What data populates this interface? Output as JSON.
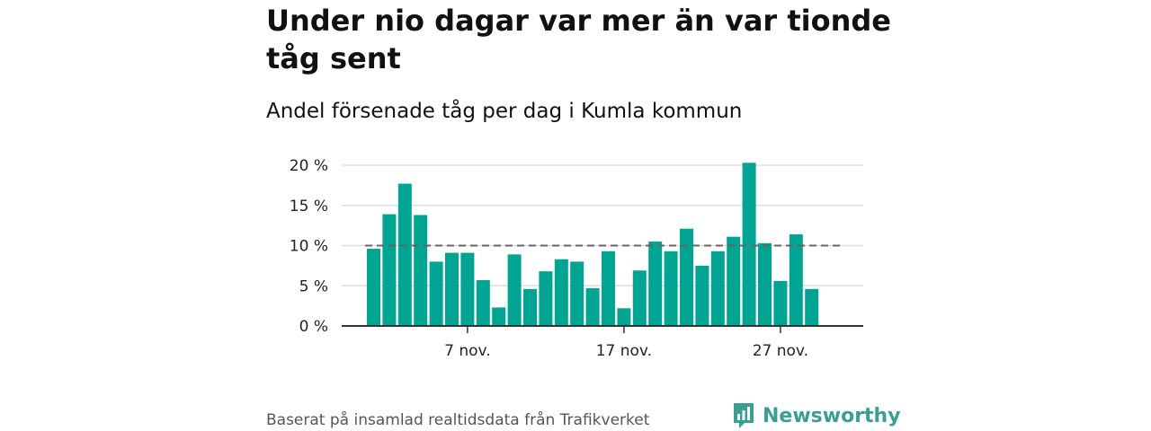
{
  "title": "Under nio dagar var mer än var tionde tåg sent",
  "subtitle": "Andel försenade tåg per dag i Kumla kommun",
  "footer": "Baserat på insamlad realtidsdata från Trafikverket",
  "logo_text": "Newsworthy",
  "colors": {
    "bar": "#00a493",
    "reference": "#666666",
    "grid": "#dddddd",
    "axis": "#333333",
    "brand": "#3a9e91"
  },
  "chart_data": {
    "type": "bar",
    "categories": [
      "1 nov.",
      "2 nov.",
      "3 nov.",
      "4 nov.",
      "5 nov.",
      "6 nov.",
      "7 nov.",
      "8 nov.",
      "9 nov.",
      "10 nov.",
      "11 nov.",
      "12 nov.",
      "13 nov.",
      "14 nov.",
      "15 nov.",
      "16 nov.",
      "17 nov.",
      "18 nov.",
      "19 nov.",
      "20 nov.",
      "21 nov.",
      "22 nov.",
      "23 nov.",
      "24 nov.",
      "25 nov.",
      "26 nov.",
      "27 nov.",
      "28 nov.",
      "29 nov.",
      "30 nov."
    ],
    "values": [
      9.6,
      13.9,
      17.7,
      13.8,
      8.0,
      9.1,
      9.1,
      5.7,
      2.3,
      8.9,
      4.6,
      6.8,
      8.3,
      8.0,
      4.7,
      9.3,
      2.2,
      6.9,
      10.5,
      9.3,
      12.1,
      7.5,
      9.3,
      11.1,
      20.3,
      10.3,
      5.6,
      11.4,
      4.6,
      null
    ],
    "reference_line": 10,
    "ylim": [
      0,
      20
    ],
    "y_ticks": [
      {
        "value": 0,
        "label": "0 %"
      },
      {
        "value": 5,
        "label": "5 %"
      },
      {
        "value": 10,
        "label": "10 %"
      },
      {
        "value": 15,
        "label": "15 %"
      },
      {
        "value": 20,
        "label": "20 %"
      }
    ],
    "x_ticks": [
      {
        "index": 6,
        "label": "7 nov."
      },
      {
        "index": 16,
        "label": "17 nov."
      },
      {
        "index": 26,
        "label": "27 nov."
      }
    ],
    "grid": true,
    "xlabel": "",
    "ylabel": ""
  }
}
